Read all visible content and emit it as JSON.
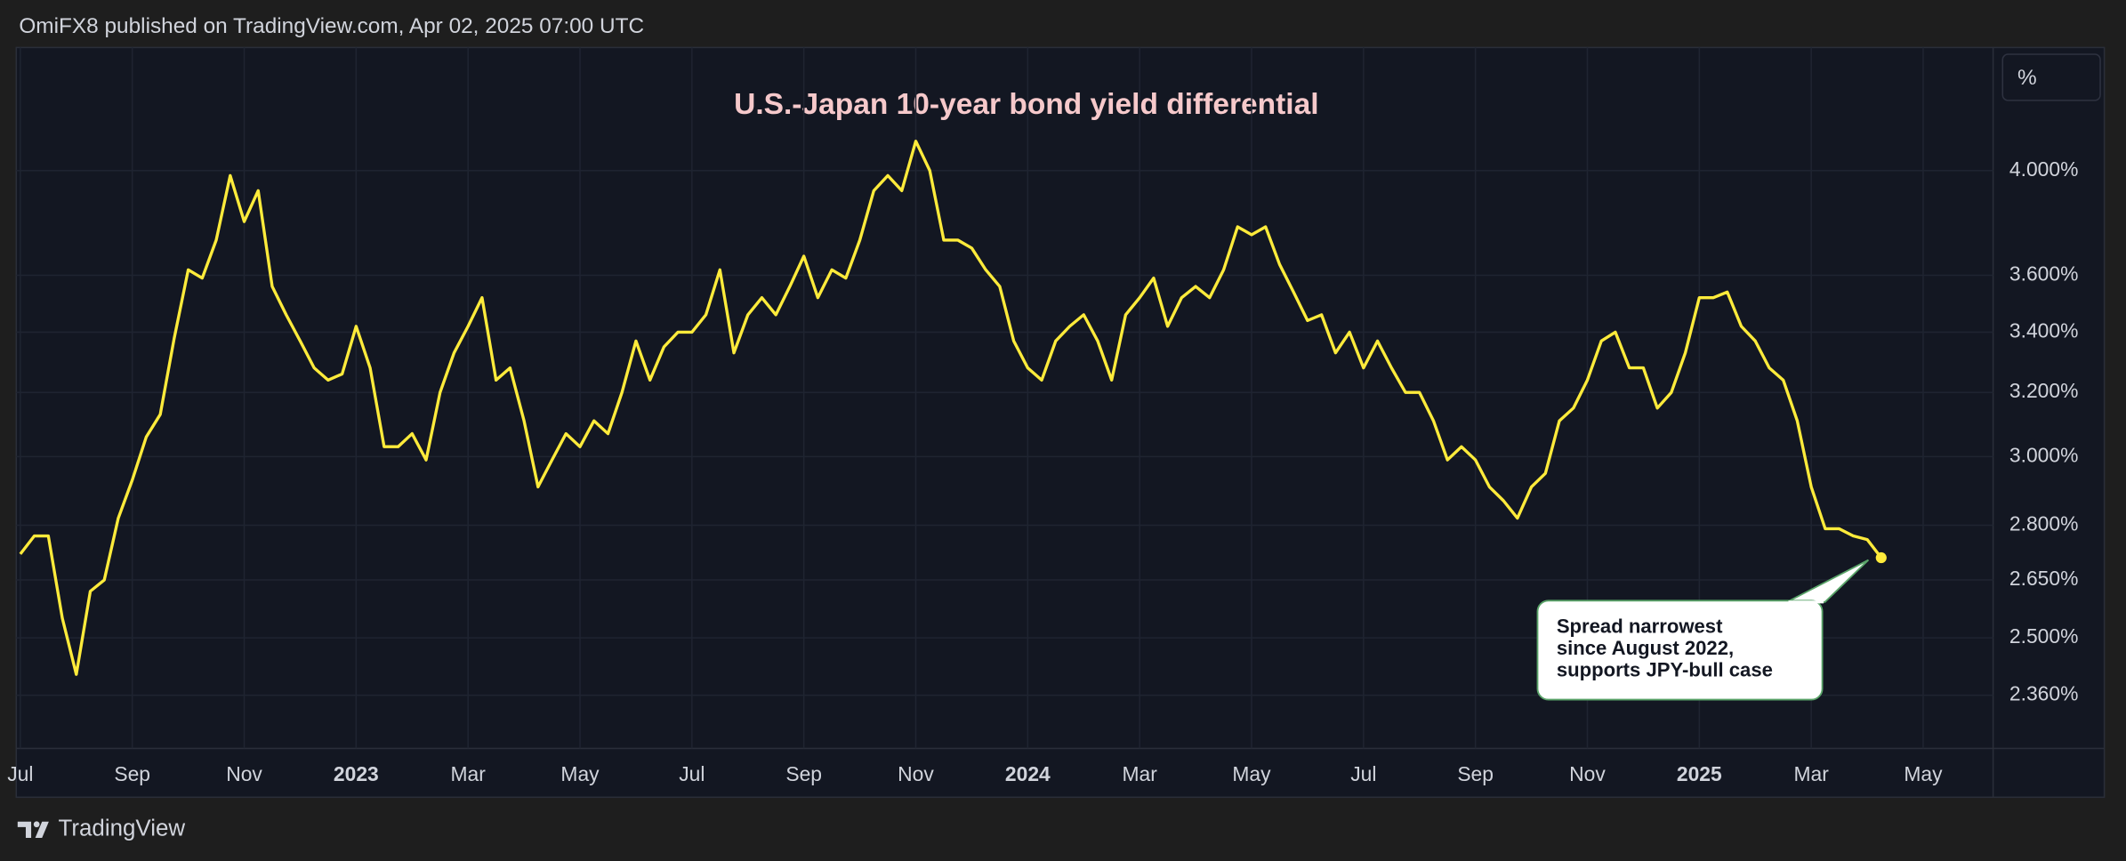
{
  "header": "OmiFX8 published on TradingView.com, Apr 02, 2025 07:00 UTC",
  "footer_brand": "TradingView",
  "chart_data": {
    "type": "line",
    "title": "U.S.-Japan 10-year bond yield differential",
    "unit_label": "%",
    "yscale": "log",
    "grid": true,
    "color": "#ffeb3b",
    "ylim": [
      2.237,
      4.527
    ],
    "yticks": [
      {
        "value": 2.36,
        "label": "2.360%"
      },
      {
        "value": 2.5,
        "label": "2.500%"
      },
      {
        "value": 2.65,
        "label": "2.650%"
      },
      {
        "value": 2.8,
        "label": "2.800%"
      },
      {
        "value": 3.0,
        "label": "3.000%"
      },
      {
        "value": 3.2,
        "label": "3.200%"
      },
      {
        "value": 3.4,
        "label": "3.400%"
      },
      {
        "value": 3.6,
        "label": "3.600%"
      },
      {
        "value": 4.0,
        "label": "4.000%"
      }
    ],
    "categories": [
      "Jul",
      null,
      null,
      null,
      null,
      null,
      null,
      null,
      "Sep",
      null,
      null,
      null,
      null,
      null,
      null,
      null,
      "Nov",
      null,
      null,
      null,
      null,
      null,
      null,
      null,
      "2023",
      null,
      null,
      null,
      null,
      null,
      null,
      null,
      "Mar",
      null,
      null,
      null,
      null,
      null,
      null,
      null,
      "May",
      null,
      null,
      null,
      null,
      null,
      null,
      null,
      "Jul",
      null,
      null,
      null,
      null,
      null,
      null,
      null,
      "Sep",
      null,
      null,
      null,
      null,
      null,
      null,
      null,
      "Nov",
      null,
      null,
      null,
      null,
      null,
      null,
      null,
      "2024",
      null,
      null,
      null,
      null,
      null,
      null,
      null,
      "Mar",
      null,
      null,
      null,
      null,
      null,
      null,
      null,
      "May",
      null,
      null,
      null,
      null,
      null,
      null,
      null,
      "Jul",
      null,
      null,
      null,
      null,
      null,
      null,
      null,
      "Sep",
      null,
      null,
      null,
      null,
      null,
      null,
      null,
      "Nov",
      null,
      null,
      null,
      null,
      null,
      null,
      null,
      "2025",
      null,
      null,
      null,
      null,
      null,
      null,
      null,
      "Mar",
      null,
      null,
      null,
      null,
      null,
      null,
      null,
      "May",
      null,
      null,
      null,
      null,
      null
    ],
    "values": [
      2.72,
      2.77,
      2.77,
      2.55,
      2.41,
      2.62,
      2.65,
      2.82,
      2.93,
      3.06,
      3.13,
      3.38,
      3.62,
      3.59,
      3.73,
      3.98,
      3.8,
      3.92,
      3.56,
      3.46,
      3.37,
      3.28,
      3.24,
      3.26,
      3.42,
      3.28,
      3.03,
      3.03,
      3.07,
      2.99,
      3.2,
      3.33,
      3.42,
      3.52,
      3.24,
      3.28,
      3.11,
      2.91,
      2.99,
      3.07,
      3.03,
      3.11,
      3.07,
      3.2,
      3.37,
      3.24,
      3.35,
      3.4,
      3.4,
      3.46,
      3.62,
      3.33,
      3.46,
      3.52,
      3.46,
      3.56,
      3.67,
      3.52,
      3.62,
      3.59,
      3.73,
      3.92,
      3.98,
      3.92,
      4.12,
      4.0,
      3.73,
      3.73,
      3.7,
      3.62,
      3.56,
      3.37,
      3.28,
      3.24,
      3.37,
      3.42,
      3.46,
      3.37,
      3.24,
      3.46,
      3.52,
      3.59,
      3.42,
      3.52,
      3.56,
      3.52,
      3.62,
      3.78,
      3.75,
      3.78,
      3.64,
      3.54,
      3.44,
      3.46,
      3.33,
      3.4,
      3.28,
      3.37,
      3.28,
      3.2,
      3.2,
      3.11,
      2.99,
      3.03,
      2.99,
      2.91,
      2.87,
      2.82,
      2.91,
      2.95,
      3.11,
      3.15,
      3.24,
      3.37,
      3.4,
      3.28,
      3.28,
      3.15,
      3.2,
      3.33,
      3.52,
      3.52,
      3.54,
      3.42,
      3.37,
      3.28,
      3.24,
      3.11,
      2.91,
      2.79,
      2.79,
      2.77,
      2.76,
      2.71,
      null,
      null,
      null,
      null,
      null,
      null,
      null,
      null
    ],
    "annotation": {
      "lines": [
        "Spread narrowest",
        "since August 2022,",
        "supports JPY-bull case"
      ]
    }
  }
}
